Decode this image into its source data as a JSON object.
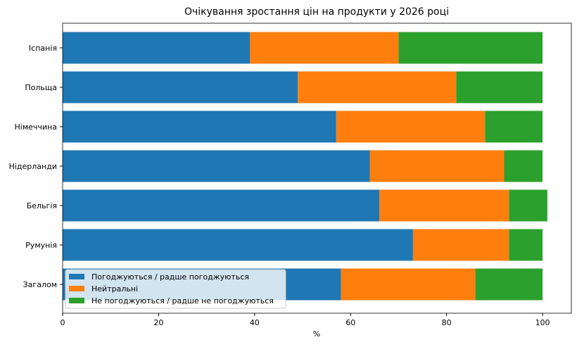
{
  "chart_data": {
    "type": "bar",
    "orientation": "horizontal",
    "stacked": true,
    "title": "Очікування зростання цін на продукти у 2026 році",
    "xlabel": "%",
    "ylabel": "",
    "xlim": [
      0,
      106
    ],
    "xticks": [
      0,
      20,
      40,
      60,
      80,
      100
    ],
    "grid": false,
    "legend_position": "bottom-left",
    "categories": [
      "Іспанія",
      "Польща",
      "Німеччина",
      "Нідерланди",
      "Бельгія",
      "Румунія",
      "Загалом"
    ],
    "series": [
      {
        "name": "Погоджуються / радше погоджуються",
        "color": "#1f77b4",
        "values": [
          39,
          49,
          57,
          64,
          66,
          73,
          58
        ]
      },
      {
        "name": "Нейтральні",
        "color": "#ff7f0e",
        "values": [
          31,
          33,
          31,
          28,
          27,
          20,
          28
        ]
      },
      {
        "name": "Не погоджуються / радше не погоджуються",
        "color": "#2ca02c",
        "values": [
          30,
          18,
          12,
          8,
          8,
          7,
          14
        ]
      }
    ]
  }
}
